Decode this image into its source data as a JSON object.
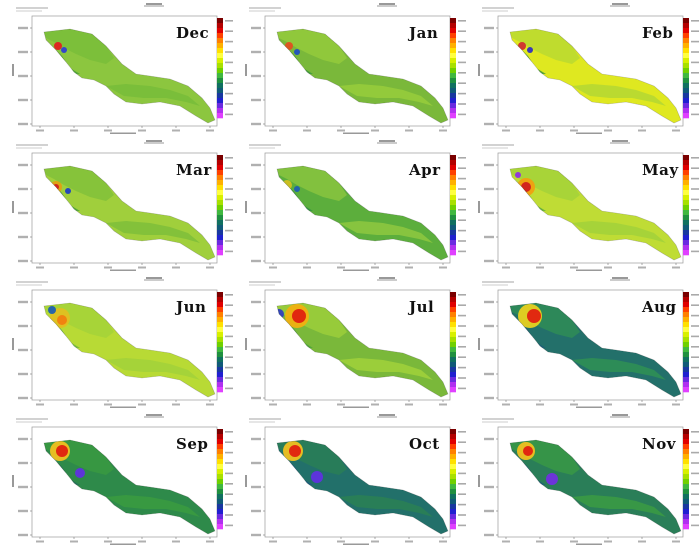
{
  "figure": {
    "domain": "Persian Gulf monthly field maps",
    "colorbar_colors": [
      "#7a0000",
      "#b40000",
      "#e00000",
      "#ff4000",
      "#ff8000",
      "#ffb000",
      "#ffe000",
      "#ffff40",
      "#d8f000",
      "#a8e000",
      "#70d000",
      "#40b840",
      "#209040",
      "#107060",
      "#105a78",
      "#1838a0",
      "#2020d0",
      "#6a2ae0",
      "#b030f0",
      "#e040ff"
    ],
    "panels": [
      {
        "month": "Dec",
        "base": "#8cc63f",
        "mid": "#78bd3a",
        "hot": "#4aa23a"
      },
      {
        "month": "Jan",
        "base": "#7ab83a",
        "mid": "#96cc3c",
        "hot": "#3b9a3d"
      },
      {
        "month": "Feb",
        "base": "#dfe820",
        "mid": "#b6d832",
        "hot": "#3d9a3d"
      },
      {
        "month": "Mar",
        "base": "#a0cf3c",
        "mid": "#7fbf3a",
        "hot": "#4aa23a"
      },
      {
        "month": "Apr",
        "base": "#5cae3c",
        "mid": "#8cc63f",
        "hot": "#2f8f45"
      },
      {
        "month": "May",
        "base": "#bfdc35",
        "mid": "#a3d23a",
        "hot": "#5bb03d"
      },
      {
        "month": "Jun",
        "base": "#b8da35",
        "mid": "#a3d23a",
        "hot": "#6ab83c"
      },
      {
        "month": "Jul",
        "base": "#7ab83a",
        "mid": "#9fd03b",
        "hot": "#4aa23a"
      },
      {
        "month": "Aug",
        "base": "#23706a",
        "mid": "#2f8f55",
        "hot": "#1c5f78"
      },
      {
        "month": "Sep",
        "base": "#2e8a4a",
        "mid": "#3a9a40",
        "hot": "#24705a"
      },
      {
        "month": "Oct",
        "base": "#22706a",
        "mid": "#2a8055",
        "hot": "#1b5c80"
      },
      {
        "month": "Nov",
        "base": "#2a7e58",
        "mid": "#3a9a45",
        "hot": "#1d6278"
      }
    ]
  }
}
